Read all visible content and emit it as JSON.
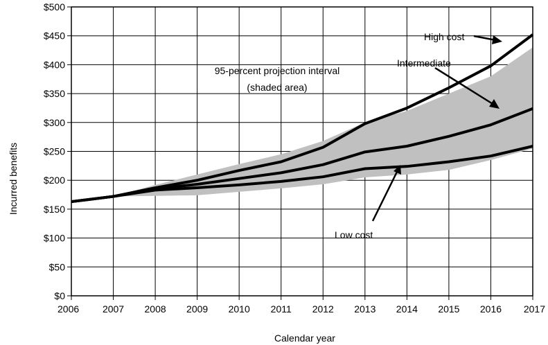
{
  "chart_data": {
    "type": "line",
    "title": "",
    "xlabel": "Calendar year",
    "ylabel": "Incurred benefits",
    "x": [
      2006,
      2007,
      2008,
      2009,
      2010,
      2011,
      2012,
      2013,
      2014,
      2015,
      2016,
      2017
    ],
    "x_tick_labels": [
      "2006",
      "2007",
      "2008",
      "2009",
      "2010",
      "2011",
      "2012",
      "2013",
      "2014",
      "2015",
      "2016",
      "2017"
    ],
    "ylim": [
      0,
      500
    ],
    "y_ticks": [
      0,
      50,
      100,
      150,
      200,
      250,
      300,
      350,
      400,
      450,
      500
    ],
    "y_tick_labels": [
      "$0",
      "$50",
      "$100",
      "$150",
      "$200",
      "$250",
      "$300",
      "$350",
      "$400",
      "$450",
      "$500"
    ],
    "grid": true,
    "band": {
      "lower": [
        163,
        172,
        173,
        174,
        180,
        186,
        193,
        205,
        210,
        218,
        235,
        255
      ],
      "upper": [
        163,
        172,
        192,
        210,
        228,
        245,
        268,
        300,
        320,
        350,
        380,
        430
      ]
    },
    "series": [
      {
        "values": [
          163,
          172,
          187,
          200,
          217,
          232,
          257,
          298,
          325,
          360,
          398,
          452
        ]
      },
      {
        "values": [
          163,
          172,
          185,
          193,
          203,
          213,
          227,
          249,
          259,
          276,
          296,
          324
        ]
      },
      {
        "values": [
          163,
          172,
          183,
          187,
          192,
          198,
          206,
          220,
          224,
          232,
          242,
          259
        ]
      }
    ],
    "annotations": {
      "band_label_line1": "95-percent projection interval",
      "band_label_line2": "(shaded area)",
      "high_cost": "High cost",
      "intermediate": "Intermediate",
      "low_cost": "Low cost"
    }
  }
}
